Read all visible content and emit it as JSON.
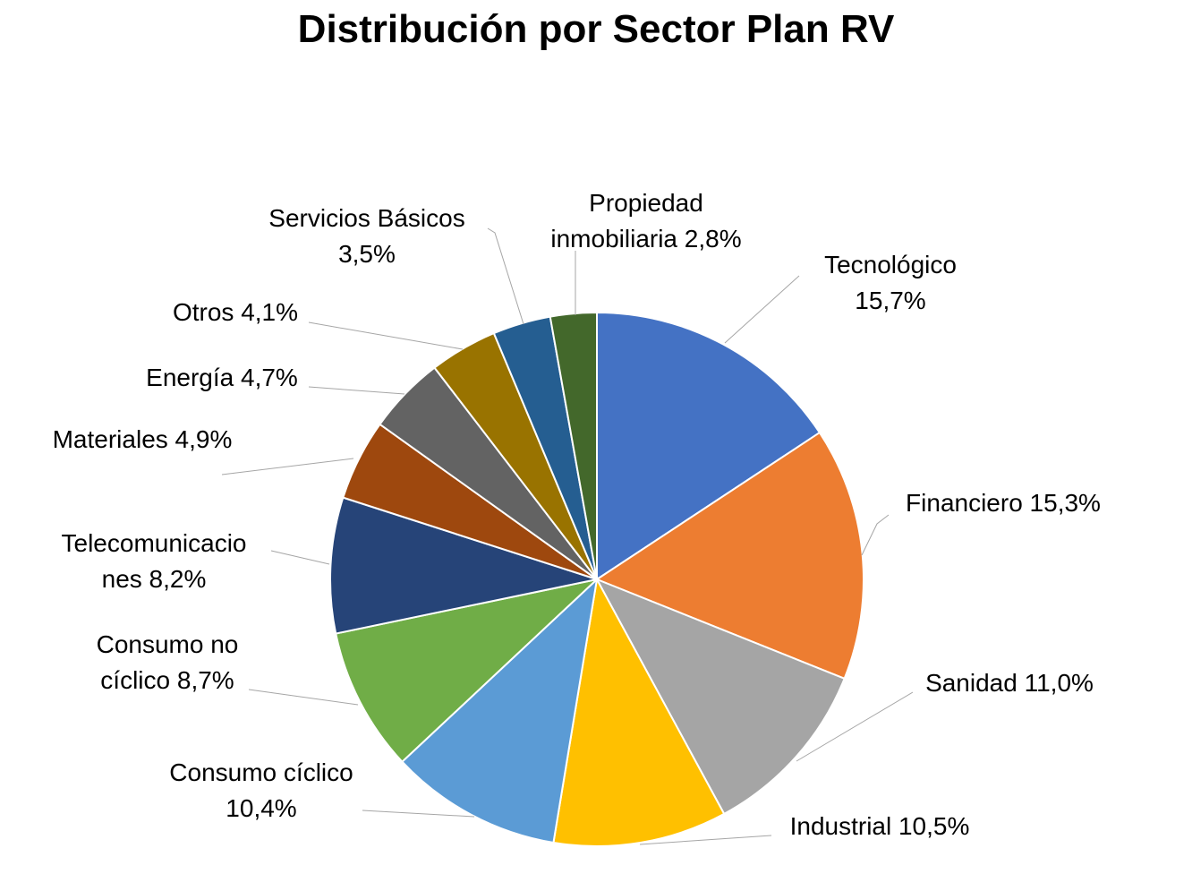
{
  "chart_data": {
    "type": "pie",
    "title": "Distribución por Sector Plan RV",
    "start_angle": "12 o'clock",
    "direction": "clockwise",
    "slices": [
      {
        "name": "Tecnológico",
        "value": 15.7,
        "label_lines": [
          "Tecnológico",
          "15,7%"
        ],
        "color": "#4472C4"
      },
      {
        "name": "Financiero",
        "value": 15.3,
        "label_lines": [
          "Financiero 15,3%"
        ],
        "color": "#ED7D31"
      },
      {
        "name": "Sanidad",
        "value": 11.0,
        "label_lines": [
          "Sanidad 11,0%"
        ],
        "color": "#A5A5A5"
      },
      {
        "name": "Industrial",
        "value": 10.5,
        "label_lines": [
          "Industrial 10,5%"
        ],
        "color": "#FFC000"
      },
      {
        "name": "Consumo cíclico",
        "value": 10.4,
        "label_lines": [
          "Consumo cíclico",
          "10,4%"
        ],
        "color": "#5B9BD5"
      },
      {
        "name": "Consumo no cíclico",
        "value": 8.7,
        "label_lines": [
          "Consumo no",
          "cíclico 8,7%"
        ],
        "color": "#70AD47"
      },
      {
        "name": "Telecomunicaciones",
        "value": 8.2,
        "label_lines": [
          "Telecomunicacio",
          "nes 8,2%"
        ],
        "color": "#264478"
      },
      {
        "name": "Materiales",
        "value": 4.9,
        "label_lines": [
          "Materiales 4,9%"
        ],
        "color": "#9E480E"
      },
      {
        "name": "Energía",
        "value": 4.7,
        "label_lines": [
          "Energía 4,7%"
        ],
        "color": "#636363"
      },
      {
        "name": "Otros",
        "value": 4.1,
        "label_lines": [
          "Otros 4,1%"
        ],
        "color": "#997300"
      },
      {
        "name": "Servicios Básicos",
        "value": 3.5,
        "label_lines": [
          "Servicios Básicos",
          "3,5%"
        ],
        "color": "#255E91"
      },
      {
        "name": "Propiedad inmobiliaria",
        "value": 2.8,
        "label_lines": [
          "Propiedad",
          "inmobiliaria 2,8%"
        ],
        "color": "#43682B"
      }
    ],
    "legend": "none",
    "data_labels": "outside with leader lines"
  }
}
